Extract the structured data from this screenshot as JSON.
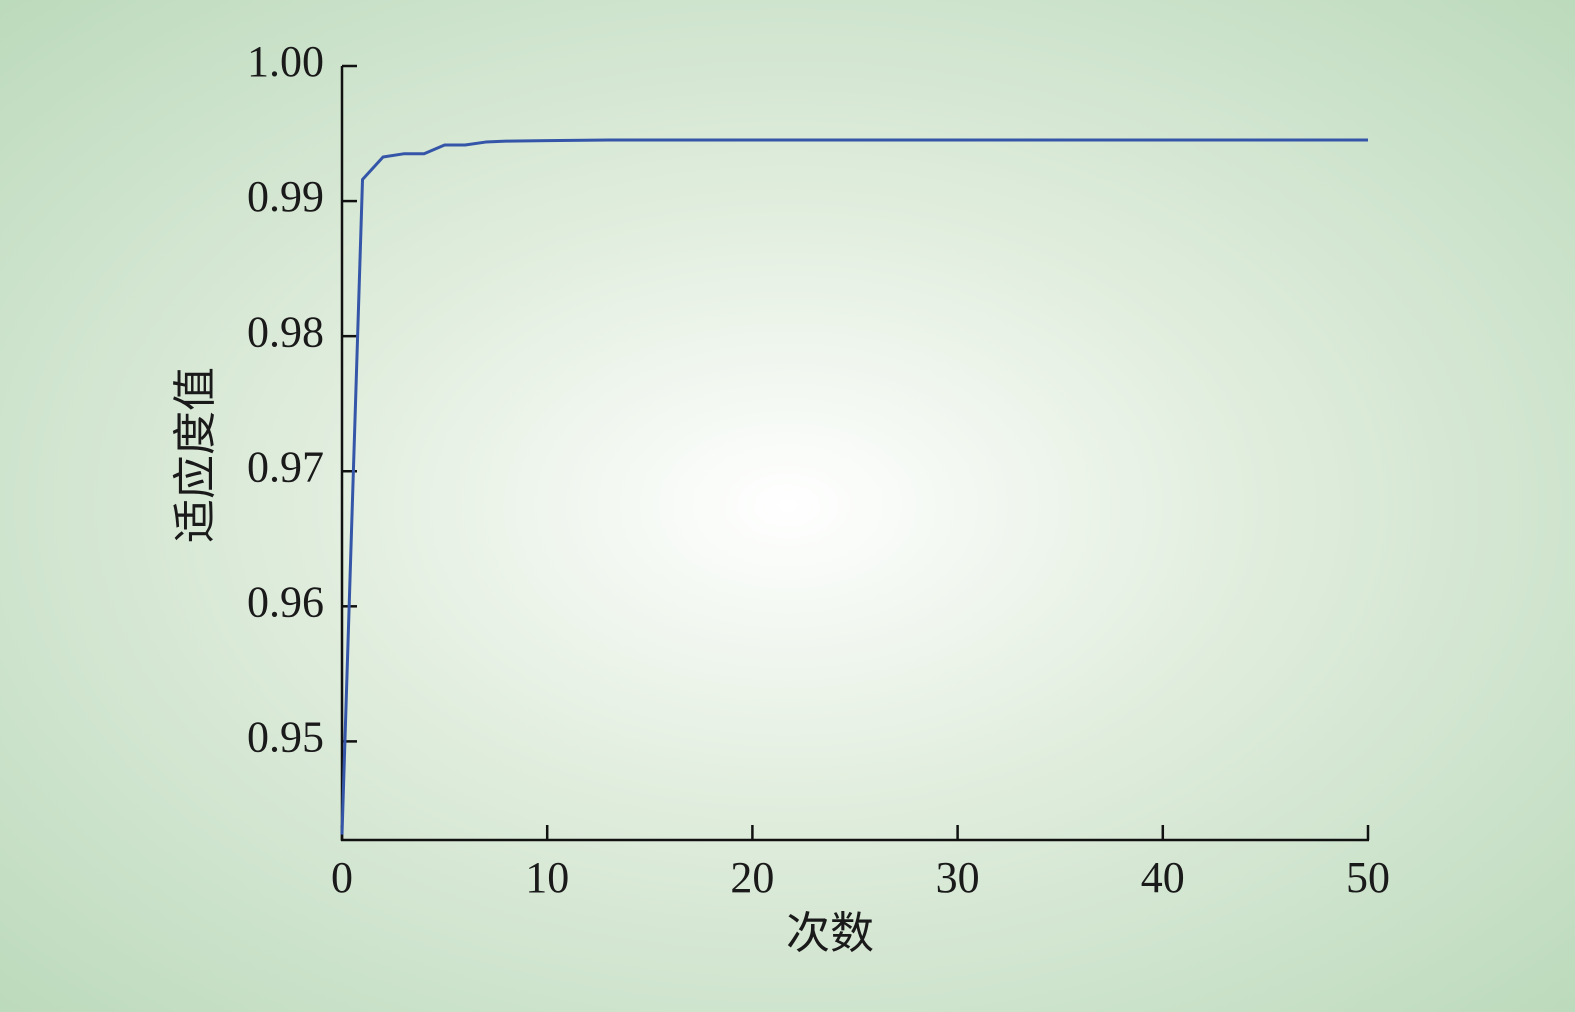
{
  "chart_data": {
    "type": "line",
    "x_label": "次数",
    "y_label": "适应度值",
    "x": [
      0,
      1,
      2,
      3,
      4,
      5,
      6,
      7,
      8,
      10,
      13,
      50
    ],
    "series": [
      {
        "name": "适应度值",
        "color": "#3556a8",
        "values": [
          0.9431,
          0.9916,
          0.99326,
          0.9935,
          0.9935,
          0.99415,
          0.99415,
          0.99437,
          0.99444,
          0.99448,
          0.99452,
          0.99452
        ]
      }
    ],
    "xlim": [
      0,
      50
    ],
    "xticks": [
      0,
      10,
      20,
      30,
      40,
      50
    ],
    "ylim": [
      0.9427,
      1.0
    ],
    "yticks": [
      0.95,
      0.96,
      0.97,
      0.98,
      0.99,
      {
        "value": 1.0,
        "label": "1.00"
      }
    ],
    "grid": false
  }
}
